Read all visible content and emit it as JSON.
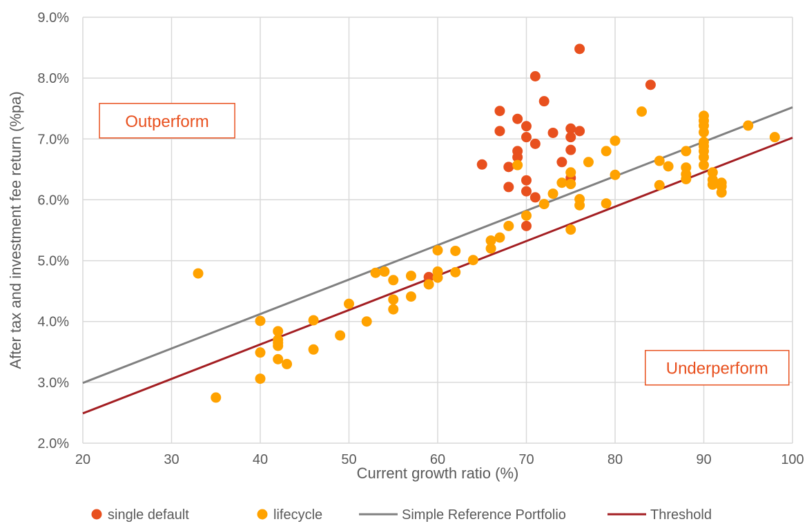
{
  "chart_data": {
    "type": "scatter",
    "title": "",
    "xlabel": "Current growth ratio (%)",
    "ylabel": "After tax and investment fee return (%pa)",
    "xlim": [
      20,
      100
    ],
    "ylim": [
      2.0,
      9.0
    ],
    "x_ticks": [
      20,
      30,
      40,
      50,
      60,
      70,
      80,
      90,
      100
    ],
    "x_tick_labels": [
      "20",
      "30",
      "40",
      "50",
      "60",
      "70",
      "80",
      "90",
      "100"
    ],
    "y_ticks": [
      2.0,
      3.0,
      4.0,
      5.0,
      6.0,
      7.0,
      8.0,
      9.0
    ],
    "y_tick_labels": [
      "2.0%",
      "3.0%",
      "4.0%",
      "5.0%",
      "6.0%",
      "7.0%",
      "8.0%",
      "9.0%"
    ],
    "grid": true,
    "legend_position": "bottom",
    "annotations": [
      {
        "text": "Outperform",
        "x": 29.5,
        "y": 7.3
      },
      {
        "text": "Underperform",
        "x": 91.5,
        "y": 3.24
      }
    ],
    "colors": {
      "single_default": "#E8501E",
      "lifecycle": "#FFA200",
      "reference": "#808080",
      "threshold": "#A31E22",
      "grid": "#D9D9D9",
      "axis_text": "#595959",
      "annotation": "#E8501E"
    },
    "series": [
      {
        "name": "single default",
        "kind": "scatter",
        "points": [
          [
            65,
            6.58
          ],
          [
            67,
            7.46
          ],
          [
            67,
            7.13
          ],
          [
            68,
            6.54
          ],
          [
            68,
            6.21
          ],
          [
            69,
            7.33
          ],
          [
            69,
            6.8
          ],
          [
            69,
            6.7
          ],
          [
            70,
            7.21
          ],
          [
            70,
            7.03
          ],
          [
            70,
            6.32
          ],
          [
            70,
            6.14
          ],
          [
            70,
            5.57
          ],
          [
            71,
            8.03
          ],
          [
            71,
            6.92
          ],
          [
            71,
            6.04
          ],
          [
            72,
            7.62
          ],
          [
            73,
            7.1
          ],
          [
            74,
            6.62
          ],
          [
            75,
            7.17
          ],
          [
            75,
            7.03
          ],
          [
            75,
            6.82
          ],
          [
            75,
            6.36
          ],
          [
            76,
            8.48
          ],
          [
            76,
            7.13
          ],
          [
            84,
            7.89
          ],
          [
            59,
            4.73
          ]
        ]
      },
      {
        "name": "lifecycle",
        "kind": "scatter",
        "points": [
          [
            33,
            4.79
          ],
          [
            35,
            2.75
          ],
          [
            40,
            4.01
          ],
          [
            40,
            3.49
          ],
          [
            40,
            3.06
          ],
          [
            42,
            3.84
          ],
          [
            42,
            3.7
          ],
          [
            42,
            3.65
          ],
          [
            42,
            3.6
          ],
          [
            42,
            3.38
          ],
          [
            43,
            3.3
          ],
          [
            46,
            4.02
          ],
          [
            46,
            3.54
          ],
          [
            49,
            3.77
          ],
          [
            50,
            4.29
          ],
          [
            52,
            4.0
          ],
          [
            53,
            4.8
          ],
          [
            54,
            4.82
          ],
          [
            55,
            4.68
          ],
          [
            55,
            4.36
          ],
          [
            55,
            4.2
          ],
          [
            57,
            4.75
          ],
          [
            57,
            4.41
          ],
          [
            59,
            4.61
          ],
          [
            60,
            5.17
          ],
          [
            60,
            4.82
          ],
          [
            60,
            4.72
          ],
          [
            62,
            5.16
          ],
          [
            62,
            4.81
          ],
          [
            64,
            5.01
          ],
          [
            66,
            5.33
          ],
          [
            66,
            5.2
          ],
          [
            67,
            5.38
          ],
          [
            68,
            5.57
          ],
          [
            69,
            6.57
          ],
          [
            70,
            5.74
          ],
          [
            72,
            5.93
          ],
          [
            73,
            6.1
          ],
          [
            74,
            6.28
          ],
          [
            75,
            6.45
          ],
          [
            75,
            6.26
          ],
          [
            75,
            5.51
          ],
          [
            76,
            6.01
          ],
          [
            76,
            5.91
          ],
          [
            77,
            6.62
          ],
          [
            79,
            6.8
          ],
          [
            79,
            5.94
          ],
          [
            80,
            6.97
          ],
          [
            80,
            6.41
          ],
          [
            83,
            7.45
          ],
          [
            85,
            6.64
          ],
          [
            85,
            6.24
          ],
          [
            86,
            6.55
          ],
          [
            88,
            6.8
          ],
          [
            88,
            6.53
          ],
          [
            88,
            6.42
          ],
          [
            88,
            6.34
          ],
          [
            90,
            7.38
          ],
          [
            90,
            7.3
          ],
          [
            90,
            7.22
          ],
          [
            90,
            7.11
          ],
          [
            90,
            6.95
          ],
          [
            90,
            6.88
          ],
          [
            90,
            6.8
          ],
          [
            90,
            6.7
          ],
          [
            90,
            6.57
          ],
          [
            91,
            6.45
          ],
          [
            91,
            6.33
          ],
          [
            91,
            6.25
          ],
          [
            92,
            6.28
          ],
          [
            92,
            6.22
          ],
          [
            92,
            6.12
          ],
          [
            95,
            7.22
          ],
          [
            98,
            7.03
          ]
        ]
      },
      {
        "name": "Simple Reference Portfolio",
        "kind": "line",
        "x": [
          20,
          100
        ],
        "y": [
          2.99,
          7.52
        ]
      },
      {
        "name": "Threshold",
        "kind": "line",
        "x": [
          20,
          100
        ],
        "y": [
          2.49,
          7.02
        ]
      }
    ]
  }
}
